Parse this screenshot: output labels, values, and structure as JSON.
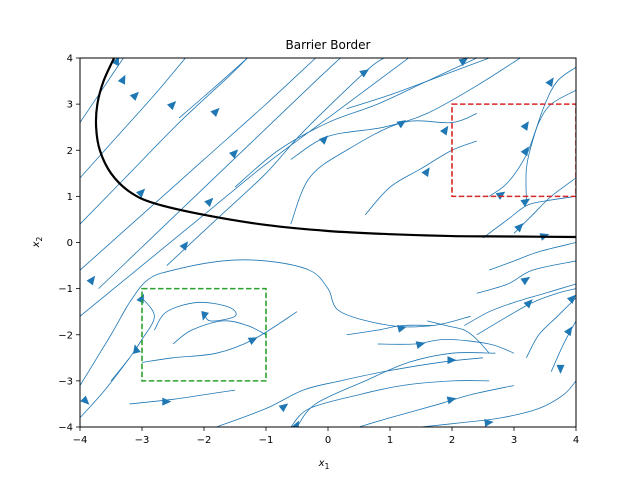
{
  "chart_data": {
    "type": "streamplot",
    "title": "Barrier Border",
    "xlabel_base": "x",
    "xlabel_sub": "1",
    "ylabel_base": "x",
    "ylabel_sub": "2",
    "xlim": [
      -4,
      4
    ],
    "ylim": [
      -4,
      4
    ],
    "xticks": [
      -4,
      -3,
      -2,
      -1,
      0,
      1,
      2,
      3,
      4
    ],
    "yticks": [
      -4,
      -3,
      -2,
      -1,
      0,
      1,
      2,
      3,
      4
    ],
    "xtick_labels": [
      "−4",
      "−3",
      "−2",
      "−1",
      "0",
      "1",
      "2",
      "3",
      "4"
    ],
    "ytick_labels": [
      "−4",
      "−3",
      "−2",
      "−1",
      "0",
      "1",
      "2",
      "3",
      "4"
    ],
    "grid": false,
    "stream_color": "#1f77b4",
    "barrier": {
      "color": "#000000",
      "points": [
        [
          -3.45,
          4.0
        ],
        [
          -3.62,
          3.5
        ],
        [
          -3.72,
          3.0
        ],
        [
          -3.74,
          2.5
        ],
        [
          -3.68,
          2.0
        ],
        [
          -3.5,
          1.5
        ],
        [
          -3.2,
          1.1
        ],
        [
          -2.8,
          0.85
        ],
        [
          -2.0,
          0.6
        ],
        [
          -1.0,
          0.38
        ],
        [
          0.0,
          0.25
        ],
        [
          1.0,
          0.18
        ],
        [
          2.0,
          0.14
        ],
        [
          3.0,
          0.13
        ],
        [
          4.0,
          0.12
        ]
      ]
    },
    "regions": [
      {
        "kind": "unsafe",
        "color": "#d62728",
        "x": [
          2,
          4
        ],
        "y": [
          1,
          3
        ]
      },
      {
        "kind": "initial",
        "color": "#2ca02c",
        "x": [
          -3,
          -1
        ],
        "y": [
          -3,
          -1
        ]
      }
    ],
    "streamlines": [
      [
        [
          -4.0,
          -0.6
        ],
        [
          -3.0,
          0.6
        ],
        [
          -2.0,
          1.8
        ],
        [
          -1.0,
          3.0
        ],
        [
          -0.2,
          4.0
        ]
      ],
      [
        [
          -4.0,
          0.4
        ],
        [
          -3.2,
          1.5
        ],
        [
          -2.4,
          2.6
        ],
        [
          -1.6,
          3.6
        ],
        [
          -1.3,
          4.0
        ]
      ],
      [
        [
          -4.0,
          1.4
        ],
        [
          -3.4,
          2.3
        ],
        [
          -2.8,
          3.2
        ],
        [
          -2.3,
          4.0
        ]
      ],
      [
        [
          -4.0,
          -1.6
        ],
        [
          -3.0,
          -0.5
        ],
        [
          -2.0,
          0.6
        ],
        [
          -1.0,
          1.7
        ],
        [
          0.0,
          2.7
        ],
        [
          1.0,
          3.7
        ],
        [
          1.3,
          4.0
        ]
      ],
      [
        [
          -4.0,
          2.6
        ],
        [
          -3.6,
          3.4
        ],
        [
          -3.3,
          4.0
        ]
      ],
      [
        [
          -1.3,
          4.0
        ],
        [
          -1.8,
          3.4
        ],
        [
          -2.4,
          2.7
        ]
      ],
      [
        [
          -3.7,
          -1.0
        ],
        [
          -3.0,
          -0.1
        ],
        [
          -2.3,
          0.8
        ],
        [
          -1.6,
          1.7
        ],
        [
          -0.9,
          2.6
        ],
        [
          -0.2,
          3.5
        ],
        [
          0.2,
          4.0
        ]
      ],
      [
        [
          -2.6,
          -0.5
        ],
        [
          -1.8,
          0.5
        ],
        [
          -1.0,
          1.5
        ],
        [
          -0.4,
          2.4
        ],
        [
          0.6,
          3.7
        ],
        [
          0.9,
          4.0
        ]
      ],
      [
        [
          -1.5,
          1.2
        ],
        [
          -0.8,
          2.0
        ],
        [
          0.0,
          2.6
        ],
        [
          0.8,
          3.0
        ],
        [
          1.6,
          3.5
        ],
        [
          2.4,
          4.0
        ]
      ],
      [
        [
          -0.6,
          1.8
        ],
        [
          0.0,
          2.3
        ],
        [
          0.9,
          2.5
        ],
        [
          1.6,
          2.8
        ],
        [
          2.4,
          3.4
        ],
        [
          3.1,
          4.0
        ]
      ],
      [
        [
          0.3,
          2.9
        ],
        [
          1.0,
          3.2
        ],
        [
          1.8,
          3.6
        ],
        [
          2.6,
          4.0
        ]
      ],
      [
        [
          -0.6,
          0.4
        ],
        [
          -0.3,
          1.4
        ],
        [
          0.3,
          2.0
        ],
        [
          1.2,
          2.6
        ],
        [
          2.0,
          2.6
        ],
        [
          2.4,
          2.8
        ]
      ],
      [
        [
          0.6,
          0.6
        ],
        [
          1.0,
          1.2
        ],
        [
          1.5,
          1.6
        ],
        [
          2.0,
          2.0
        ],
        [
          2.4,
          2.2
        ]
      ],
      [
        [
          3.2,
          0.9
        ],
        [
          3.2,
          1.6
        ],
        [
          3.3,
          2.2
        ],
        [
          3.5,
          3.0
        ],
        [
          3.7,
          3.5
        ],
        [
          4.0,
          3.8
        ]
      ],
      [
        [
          2.6,
          1.0
        ],
        [
          2.9,
          1.3
        ],
        [
          3.2,
          1.9
        ],
        [
          3.4,
          2.6
        ],
        [
          3.6,
          3.0
        ],
        [
          4.0,
          3.3
        ]
      ],
      [
        [
          2.5,
          0.1
        ],
        [
          2.9,
          0.5
        ],
        [
          3.2,
          0.8
        ],
        [
          3.5,
          0.9
        ],
        [
          4.0,
          1.0
        ]
      ],
      [
        [
          3.0,
          0.2
        ],
        [
          3.3,
          0.6
        ],
        [
          3.6,
          1.0
        ],
        [
          4.0,
          1.4
        ]
      ],
      [
        [
          2.6,
          -0.6
        ],
        [
          3.0,
          -0.4
        ],
        [
          3.4,
          -0.2
        ],
        [
          4.0,
          0.0
        ]
      ],
      [
        [
          2.4,
          -1.1
        ],
        [
          2.9,
          -0.9
        ],
        [
          3.3,
          -0.6
        ],
        [
          4.0,
          -0.4
        ]
      ],
      [
        [
          2.2,
          -1.8
        ],
        [
          2.6,
          -1.5
        ],
        [
          3.0,
          -1.3
        ],
        [
          3.5,
          -1.1
        ],
        [
          4.0,
          -0.9
        ]
      ],
      [
        [
          2.4,
          -2.0
        ],
        [
          2.9,
          -1.6
        ],
        [
          3.3,
          -1.3
        ],
        [
          3.7,
          -1.1
        ],
        [
          4.0,
          -1.0
        ]
      ],
      [
        [
          3.2,
          -2.5
        ],
        [
          3.4,
          -2.0
        ],
        [
          3.7,
          -1.6
        ],
        [
          4.0,
          -1.2
        ]
      ],
      [
        [
          3.6,
          -2.8
        ],
        [
          3.8,
          -2.2
        ],
        [
          4.0,
          -1.7
        ]
      ],
      [
        [
          -4.0,
          -3.1
        ],
        [
          -3.5,
          -2.0
        ],
        [
          -3.2,
          -1.3
        ],
        [
          -2.9,
          -0.8
        ],
        [
          -2.5,
          -0.6
        ],
        [
          -1.7,
          -0.4
        ],
        [
          -1.0,
          -0.4
        ],
        [
          -0.3,
          -0.6
        ],
        [
          0.0,
          -1.0
        ],
        [
          0.2,
          -1.5
        ],
        [
          1.0,
          -1.8
        ],
        [
          1.7,
          -1.8
        ],
        [
          2.3,
          -1.6
        ]
      ],
      [
        [
          -2.8,
          -1.9
        ],
        [
          -2.6,
          -1.5
        ],
        [
          -2.1,
          -1.3
        ],
        [
          -1.6,
          -1.4
        ],
        [
          -1.5,
          -1.6
        ],
        [
          -1.9,
          -1.7
        ],
        [
          -2.0,
          -1.5
        ]
      ],
      [
        [
          -2.5,
          -2.2
        ],
        [
          -2.2,
          -1.9
        ],
        [
          -1.7,
          -1.7
        ],
        [
          -1.3,
          -1.8
        ],
        [
          -1.0,
          -2.0
        ]
      ],
      [
        [
          -3.0,
          -2.6
        ],
        [
          -2.5,
          -2.5
        ],
        [
          -1.8,
          -2.4
        ],
        [
          -1.2,
          -2.1
        ],
        [
          -0.5,
          -1.5
        ]
      ],
      [
        [
          -3.5,
          -3.0
        ],
        [
          -3.2,
          -2.5
        ],
        [
          -3.0,
          -2.1
        ],
        [
          -2.8,
          -1.6
        ],
        [
          -3.0,
          -1.2
        ]
      ],
      [
        [
          -4.0,
          -3.8
        ],
        [
          -3.6,
          -3.2
        ],
        [
          -3.2,
          -2.5
        ]
      ],
      [
        [
          -3.2,
          -3.5
        ],
        [
          -2.5,
          -3.4
        ],
        [
          -2.0,
          -3.3
        ],
        [
          -1.5,
          -3.2
        ]
      ],
      [
        [
          -1.8,
          -4.0
        ],
        [
          -1.0,
          -3.6
        ],
        [
          -0.4,
          -3.2
        ],
        [
          0.2,
          -3.0
        ],
        [
          0.9,
          -2.8
        ],
        [
          1.8,
          -2.6
        ],
        [
          2.5,
          -2.5
        ]
      ],
      [
        [
          -0.6,
          -4.0
        ],
        [
          -0.3,
          -3.6
        ],
        [
          0.5,
          -3.3
        ],
        [
          1.2,
          -3.1
        ],
        [
          2.0,
          -3.0
        ],
        [
          2.6,
          -3.0
        ]
      ],
      [
        [
          -0.5,
          -4.0
        ],
        [
          -0.2,
          -3.5
        ],
        [
          0.6,
          -3.0
        ],
        [
          1.3,
          -2.6
        ],
        [
          2.0,
          -2.4
        ],
        [
          2.7,
          -2.4
        ]
      ],
      [
        [
          0.8,
          -2.2
        ],
        [
          1.4,
          -2.2
        ],
        [
          1.9,
          -2.1
        ],
        [
          2.6,
          -2.2
        ],
        [
          3.0,
          -2.4
        ]
      ],
      [
        [
          0.5,
          -4.0
        ],
        [
          1.0,
          -3.8
        ],
        [
          1.8,
          -3.5
        ],
        [
          2.3,
          -3.3
        ],
        [
          3.0,
          -3.1
        ]
      ],
      [
        [
          1.5,
          -4.0
        ],
        [
          2.2,
          -3.9
        ],
        [
          2.8,
          -3.8
        ],
        [
          3.4,
          -3.6
        ],
        [
          3.8,
          -3.3
        ],
        [
          4.0,
          -3.0
        ]
      ],
      [
        [
          0.3,
          -2.0
        ],
        [
          0.8,
          -1.9
        ],
        [
          1.2,
          -1.8
        ],
        [
          1.7,
          -1.8
        ]
      ],
      [
        [
          1.6,
          -1.7
        ],
        [
          1.9,
          -1.8
        ],
        [
          2.2,
          -1.9
        ],
        [
          2.4,
          -2.1
        ],
        [
          2.6,
          -2.4
        ]
      ]
    ],
    "arrows": [
      {
        "x": -3.4,
        "y": 3.95,
        "dx": 0.2,
        "dy": 0.4
      },
      {
        "x": -3.3,
        "y": 3.55,
        "dx": 0.2,
        "dy": 0.4
      },
      {
        "x": -3.1,
        "y": 3.2,
        "dx": 0.3,
        "dy": 0.3
      },
      {
        "x": -2.5,
        "y": 3.0,
        "dx": 0.3,
        "dy": 0.3
      },
      {
        "x": -1.8,
        "y": 2.85,
        "dx": 0.3,
        "dy": 0.3
      },
      {
        "x": -1.5,
        "y": 1.95,
        "dx": 0.3,
        "dy": 0.3
      },
      {
        "x": -0.05,
        "y": 2.25,
        "dx": 0.3,
        "dy": 0.3
      },
      {
        "x": 0.6,
        "y": 3.7,
        "dx": 0.3,
        "dy": 0.2
      },
      {
        "x": 2.2,
        "y": 3.95,
        "dx": 0.3,
        "dy": 0.2
      },
      {
        "x": 1.2,
        "y": 2.6,
        "dx": 0.3,
        "dy": 0.2
      },
      {
        "x": 1.9,
        "y": 2.45,
        "dx": 0.2,
        "dy": 0.3
      },
      {
        "x": 3.6,
        "y": 3.5,
        "dx": 0.2,
        "dy": 0.3
      },
      {
        "x": 3.2,
        "y": 2.55,
        "dx": 0.2,
        "dy": 0.3
      },
      {
        "x": 3.2,
        "y": 2.0,
        "dx": 0.2,
        "dy": 0.3
      },
      {
        "x": 1.6,
        "y": 1.55,
        "dx": 0.2,
        "dy": 0.3
      },
      {
        "x": 2.8,
        "y": 1.05,
        "dx": 0.3,
        "dy": 0.2
      },
      {
        "x": 3.2,
        "y": 0.9,
        "dx": 0.3,
        "dy": 0.2
      },
      {
        "x": -1.9,
        "y": 0.9,
        "dx": 0.3,
        "dy": 0.3
      },
      {
        "x": -3.0,
        "y": 1.1,
        "dx": 0.3,
        "dy": 0.3
      },
      {
        "x": -2.3,
        "y": -0.05,
        "dx": 0.3,
        "dy": 0.4
      },
      {
        "x": -3.8,
        "y": -0.8,
        "dx": 0.3,
        "dy": 0.4
      },
      {
        "x": 3.1,
        "y": 0.35,
        "dx": 0.3,
        "dy": 0.3
      },
      {
        "x": 3.5,
        "y": 0.15,
        "dx": 0.3,
        "dy": 0.1
      },
      {
        "x": 3.2,
        "y": -0.8,
        "dx": 0.3,
        "dy": 0.2
      },
      {
        "x": 3.25,
        "y": -1.3,
        "dx": 0.3,
        "dy": 0.3
      },
      {
        "x": 3.95,
        "y": -1.2,
        "dx": 0.3,
        "dy": 0.3
      },
      {
        "x": 3.9,
        "y": -1.9,
        "dx": 0.2,
        "dy": 0.3
      },
      {
        "x": 3.75,
        "y": -2.75,
        "dx": 0.0,
        "dy": -0.4
      },
      {
        "x": -3.0,
        "y": -1.2,
        "dx": 0.2,
        "dy": 0.4
      },
      {
        "x": -2.0,
        "y": -1.6,
        "dx": -0.1,
        "dy": -0.4
      },
      {
        "x": -1.2,
        "y": -2.1,
        "dx": 0.4,
        "dy": 0.2
      },
      {
        "x": -3.1,
        "y": -2.3,
        "dx": -0.1,
        "dy": 0.4
      },
      {
        "x": -2.6,
        "y": -3.45,
        "dx": 0.4,
        "dy": 0.0
      },
      {
        "x": -3.9,
        "y": -3.45,
        "dx": 0.3,
        "dy": -0.3
      },
      {
        "x": -0.7,
        "y": -3.55,
        "dx": 0.4,
        "dy": 0.3
      },
      {
        "x": -0.5,
        "y": -3.95,
        "dx": 0.2,
        "dy": 0.4
      },
      {
        "x": 1.2,
        "y": -1.85,
        "dx": 0.4,
        "dy": 0.1
      },
      {
        "x": 1.5,
        "y": -2.2,
        "dx": 0.4,
        "dy": 0.1
      },
      {
        "x": 2.0,
        "y": -2.55,
        "dx": 0.4,
        "dy": 0.0
      },
      {
        "x": 2.0,
        "y": -3.4,
        "dx": 0.4,
        "dy": 0.1
      },
      {
        "x": 2.6,
        "y": -3.9,
        "dx": 0.4,
        "dy": 0.05
      }
    ]
  }
}
